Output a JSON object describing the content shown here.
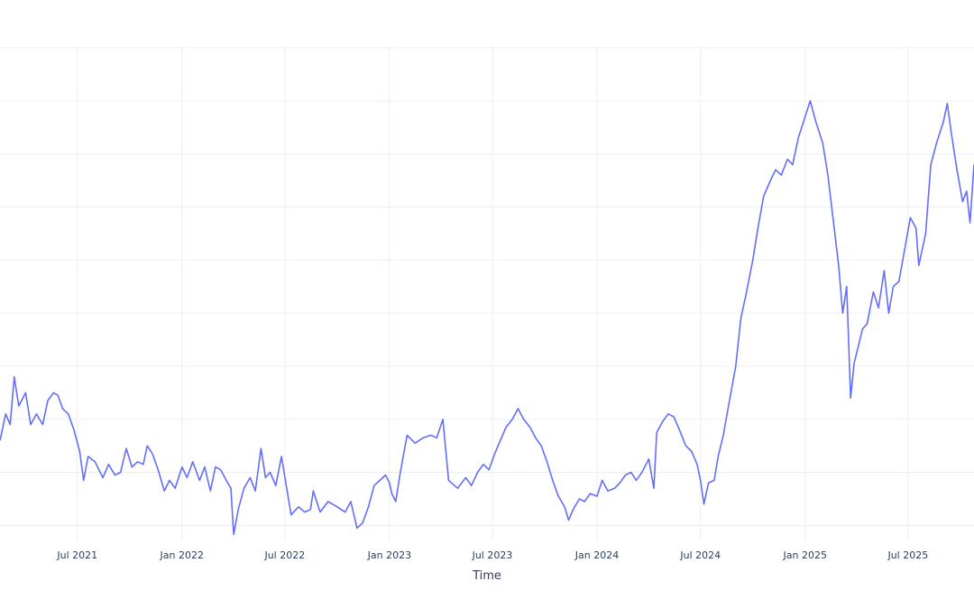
{
  "chart_data": {
    "type": "line",
    "title": "",
    "xlabel": "Time",
    "ylabel": "",
    "x_tick_labels": [
      "Jul 2021",
      "Jan 2022",
      "Jul 2022",
      "Jan 2023",
      "Jul 2023",
      "Jan 2024",
      "Jul 2024",
      "Jan 2025",
      "Jul 2025"
    ],
    "x_tick_dates": [
      "2021-07-01",
      "2022-01-01",
      "2022-07-01",
      "2023-01-01",
      "2023-07-01",
      "2024-01-01",
      "2024-07-01",
      "2025-01-01",
      "2025-07-01"
    ],
    "xlim": [
      "2021-02-15",
      "2025-10-25"
    ],
    "ylim": [
      0.2,
      9.55
    ],
    "y_gridlines": [
      0.5,
      1.5,
      2.5,
      3.5,
      4.5,
      5.5,
      6.5,
      7.5,
      8.5,
      9.5
    ],
    "grid": true,
    "legend": false,
    "series": [
      {
        "color": "#636efa",
        "points": [
          [
            "2021-02-15",
            2.1
          ],
          [
            "2021-02-25",
            2.6
          ],
          [
            "2021-03-05",
            2.4
          ],
          [
            "2021-03-12",
            3.3
          ],
          [
            "2021-03-20",
            2.75
          ],
          [
            "2021-04-01",
            3.0
          ],
          [
            "2021-04-10",
            2.4
          ],
          [
            "2021-04-20",
            2.6
          ],
          [
            "2021-05-01",
            2.4
          ],
          [
            "2021-05-10",
            2.85
          ],
          [
            "2021-05-20",
            3.0
          ],
          [
            "2021-05-28",
            2.95
          ],
          [
            "2021-06-05",
            2.7
          ],
          [
            "2021-06-15",
            2.6
          ],
          [
            "2021-06-25",
            2.3
          ],
          [
            "2021-07-05",
            1.9
          ],
          [
            "2021-07-12",
            1.35
          ],
          [
            "2021-07-20",
            1.8
          ],
          [
            "2021-08-01",
            1.7
          ],
          [
            "2021-08-15",
            1.4
          ],
          [
            "2021-08-25",
            1.65
          ],
          [
            "2021-09-05",
            1.45
          ],
          [
            "2021-09-15",
            1.5
          ],
          [
            "2021-09-25",
            1.95
          ],
          [
            "2021-10-05",
            1.6
          ],
          [
            "2021-10-15",
            1.7
          ],
          [
            "2021-10-25",
            1.65
          ],
          [
            "2021-11-01",
            2.0
          ],
          [
            "2021-11-10",
            1.85
          ],
          [
            "2021-11-20",
            1.55
          ],
          [
            "2021-12-01",
            1.15
          ],
          [
            "2021-12-10",
            1.35
          ],
          [
            "2021-12-20",
            1.2
          ],
          [
            "2022-01-01",
            1.6
          ],
          [
            "2022-01-10",
            1.4
          ],
          [
            "2022-01-20",
            1.7
          ],
          [
            "2022-02-01",
            1.35
          ],
          [
            "2022-02-10",
            1.6
          ],
          [
            "2022-02-20",
            1.15
          ],
          [
            "2022-03-01",
            1.6
          ],
          [
            "2022-03-10",
            1.55
          ],
          [
            "2022-03-20",
            1.35
          ],
          [
            "2022-03-28",
            1.2
          ],
          [
            "2022-04-02",
            0.33
          ],
          [
            "2022-04-10",
            0.8
          ],
          [
            "2022-04-20",
            1.2
          ],
          [
            "2022-05-01",
            1.4
          ],
          [
            "2022-05-10",
            1.15
          ],
          [
            "2022-05-20",
            1.95
          ],
          [
            "2022-05-28",
            1.4
          ],
          [
            "2022-06-05",
            1.5
          ],
          [
            "2022-06-15",
            1.25
          ],
          [
            "2022-06-25",
            1.8
          ],
          [
            "2022-07-05",
            1.15
          ],
          [
            "2022-07-12",
            0.7
          ],
          [
            "2022-07-25",
            0.85
          ],
          [
            "2022-08-05",
            0.75
          ],
          [
            "2022-08-15",
            0.8
          ],
          [
            "2022-08-20",
            1.15
          ],
          [
            "2022-09-01",
            0.75
          ],
          [
            "2022-09-15",
            0.95
          ],
          [
            "2022-10-01",
            0.85
          ],
          [
            "2022-10-15",
            0.75
          ],
          [
            "2022-10-25",
            0.95
          ],
          [
            "2022-11-05",
            0.45
          ],
          [
            "2022-11-15",
            0.55
          ],
          [
            "2022-11-25",
            0.85
          ],
          [
            "2022-12-05",
            1.25
          ],
          [
            "2022-12-15",
            1.35
          ],
          [
            "2022-12-25",
            1.45
          ],
          [
            "2023-01-01",
            1.3
          ],
          [
            "2023-01-05",
            1.1
          ],
          [
            "2023-01-12",
            0.95
          ],
          [
            "2023-01-20",
            1.5
          ],
          [
            "2023-02-01",
            2.2
          ],
          [
            "2023-02-15",
            2.05
          ],
          [
            "2023-03-01",
            2.15
          ],
          [
            "2023-03-15",
            2.2
          ],
          [
            "2023-03-25",
            2.15
          ],
          [
            "2023-04-05",
            2.5
          ],
          [
            "2023-04-15",
            1.35
          ],
          [
            "2023-05-01",
            1.2
          ],
          [
            "2023-05-15",
            1.4
          ],
          [
            "2023-05-25",
            1.25
          ],
          [
            "2023-06-05",
            1.5
          ],
          [
            "2023-06-15",
            1.65
          ],
          [
            "2023-06-25",
            1.55
          ],
          [
            "2023-07-05",
            1.85
          ],
          [
            "2023-07-15",
            2.1
          ],
          [
            "2023-07-25",
            2.35
          ],
          [
            "2023-08-05",
            2.5
          ],
          [
            "2023-08-15",
            2.7
          ],
          [
            "2023-08-25",
            2.5
          ],
          [
            "2023-09-05",
            2.35
          ],
          [
            "2023-09-15",
            2.15
          ],
          [
            "2023-09-25",
            2.0
          ],
          [
            "2023-10-05",
            1.7
          ],
          [
            "2023-10-15",
            1.35
          ],
          [
            "2023-10-25",
            1.05
          ],
          [
            "2023-11-05",
            0.85
          ],
          [
            "2023-11-12",
            0.6
          ],
          [
            "2023-11-20",
            0.8
          ],
          [
            "2023-12-01",
            1.0
          ],
          [
            "2023-12-10",
            0.95
          ],
          [
            "2023-12-20",
            1.1
          ],
          [
            "2024-01-01",
            1.05
          ],
          [
            "2024-01-10",
            1.35
          ],
          [
            "2024-01-20",
            1.15
          ],
          [
            "2024-02-01",
            1.2
          ],
          [
            "2024-02-10",
            1.3
          ],
          [
            "2024-02-20",
            1.45
          ],
          [
            "2024-03-01",
            1.5
          ],
          [
            "2024-03-10",
            1.35
          ],
          [
            "2024-03-20",
            1.5
          ],
          [
            "2024-04-01",
            1.75
          ],
          [
            "2024-04-10",
            1.2
          ],
          [
            "2024-04-15",
            2.25
          ],
          [
            "2024-04-25",
            2.45
          ],
          [
            "2024-05-05",
            2.6
          ],
          [
            "2024-05-15",
            2.55
          ],
          [
            "2024-05-25",
            2.3
          ],
          [
            "2024-06-05",
            2.0
          ],
          [
            "2024-06-15",
            1.9
          ],
          [
            "2024-06-25",
            1.65
          ],
          [
            "2024-07-01",
            1.35
          ],
          [
            "2024-07-07",
            0.9
          ],
          [
            "2024-07-15",
            1.3
          ],
          [
            "2024-07-25",
            1.35
          ],
          [
            "2024-08-01",
            1.8
          ],
          [
            "2024-08-10",
            2.2
          ],
          [
            "2024-08-20",
            2.8
          ],
          [
            "2024-09-01",
            3.5
          ],
          [
            "2024-09-10",
            4.4
          ],
          [
            "2024-09-20",
            4.9
          ],
          [
            "2024-10-01",
            5.5
          ],
          [
            "2024-10-10",
            6.1
          ],
          [
            "2024-10-20",
            6.7
          ],
          [
            "2024-11-01",
            7.0
          ],
          [
            "2024-11-10",
            7.2
          ],
          [
            "2024-11-20",
            7.1
          ],
          [
            "2024-12-01",
            7.4
          ],
          [
            "2024-12-10",
            7.3
          ],
          [
            "2024-12-20",
            7.8
          ],
          [
            "2025-01-01",
            8.2
          ],
          [
            "2025-01-10",
            8.5
          ],
          [
            "2025-01-20",
            8.1
          ],
          [
            "2025-02-01",
            7.7
          ],
          [
            "2025-02-10",
            7.1
          ],
          [
            "2025-02-20",
            6.2
          ],
          [
            "2025-03-01",
            5.4
          ],
          [
            "2025-03-08",
            4.5
          ],
          [
            "2025-03-15",
            5.0
          ],
          [
            "2025-03-22",
            2.9
          ],
          [
            "2025-03-28",
            3.55
          ],
          [
            "2025-04-05",
            3.9
          ],
          [
            "2025-04-12",
            4.2
          ],
          [
            "2025-04-20",
            4.3
          ],
          [
            "2025-05-01",
            4.9
          ],
          [
            "2025-05-10",
            4.6
          ],
          [
            "2025-05-20",
            5.3
          ],
          [
            "2025-05-28",
            4.5
          ],
          [
            "2025-06-05",
            5.0
          ],
          [
            "2025-06-15",
            5.1
          ],
          [
            "2025-06-25",
            5.7
          ],
          [
            "2025-07-05",
            6.3
          ],
          [
            "2025-07-15",
            6.1
          ],
          [
            "2025-07-20",
            5.4
          ],
          [
            "2025-08-01",
            6.0
          ],
          [
            "2025-08-10",
            7.3
          ],
          [
            "2025-08-20",
            7.7
          ],
          [
            "2025-09-01",
            8.1
          ],
          [
            "2025-09-08",
            8.45
          ],
          [
            "2025-09-15",
            7.9
          ],
          [
            "2025-09-25",
            7.2
          ],
          [
            "2025-10-05",
            6.6
          ],
          [
            "2025-10-12",
            6.8
          ],
          [
            "2025-10-18",
            6.2
          ],
          [
            "2025-10-25",
            7.3
          ]
        ]
      }
    ]
  }
}
